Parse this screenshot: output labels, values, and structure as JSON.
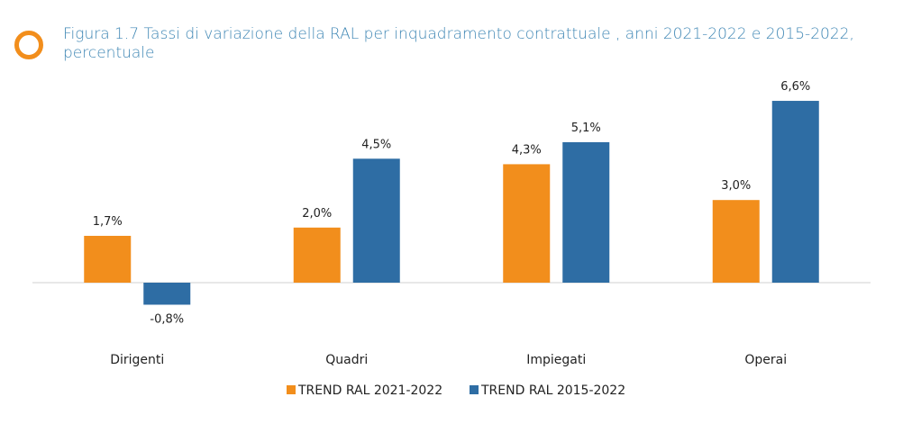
{
  "figure": {
    "title": "Figura 1.7 Tassi di variazione della RAL per inquadramento contrattuale , anni 2021-2022 e 2015-2022, percentuale",
    "accent_color": "#F28E1C",
    "title_color": "#3E86B4"
  },
  "chart_data": {
    "type": "bar",
    "title": "Figura 1.7 Tassi di variazione della RAL per inquadramento contrattuale , anni 2021-2022 e 2015-2022, percentuale",
    "xlabel": "",
    "ylabel": "",
    "categories": [
      "Dirigenti",
      "Quadri",
      "Impiegati",
      "Operai"
    ],
    "series": [
      {
        "name": "TREND RAL 2021-2022",
        "color": "#F28E1C",
        "values": [
          1.7,
          2.0,
          4.3,
          3.0
        ],
        "labels": [
          "1,7%",
          "2,0%",
          "4,3%",
          "3,0%"
        ]
      },
      {
        "name": "TREND RAL 2015-2022",
        "color": "#2E6DA4",
        "values": [
          -0.8,
          4.5,
          5.1,
          6.6
        ],
        "labels": [
          "-0,8%",
          "4,5%",
          "5,1%",
          "6,6%"
        ]
      }
    ],
    "ylim": [
      -1.0,
      7.0
    ],
    "grid": false,
    "legend_position": "bottom"
  }
}
